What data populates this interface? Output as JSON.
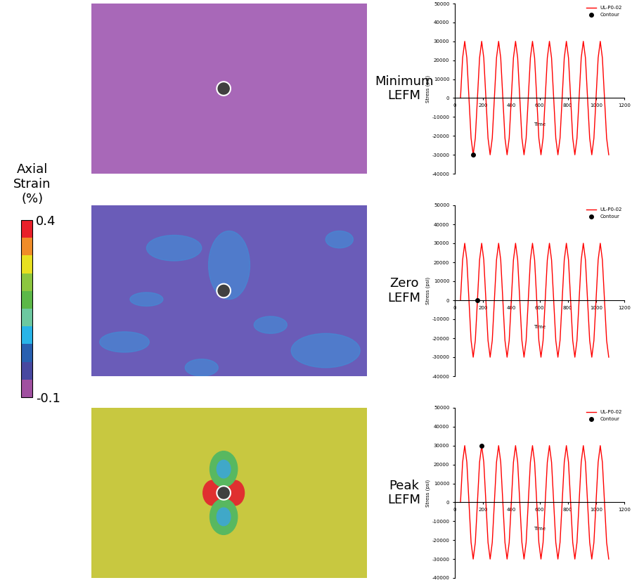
{
  "colorbar": {
    "label": "Axial\nStrain\n(%)",
    "range": [
      -0.1,
      0.4
    ],
    "ticks": [
      0.4,
      -0.1
    ],
    "colors": [
      "#e8202a",
      "#f08c28",
      "#e8e020",
      "#8cc63f",
      "#5cb848",
      "#6cc8a0",
      "#28b4e8",
      "#2860b0",
      "#4848a0",
      "#a050a0"
    ]
  },
  "panels": [
    {
      "label": "Minimum LEFM",
      "color": "#a868b8"
    },
    {
      "label": "Zero LEFM",
      "color": "#6a5cb8"
    },
    {
      "label": "Peak LEFM",
      "color": "#c8c840"
    }
  ],
  "chart_data": [
    {
      "type": "line",
      "x_label": "Time",
      "y_label": "Stress (psi)",
      "legend": "upper right",
      "xlim": [
        0,
        1200
      ],
      "xticks": [
        0,
        200,
        400,
        600,
        800,
        1000,
        1200
      ],
      "ylim": [
        -40000,
        50000
      ],
      "yticks": [
        -40000,
        -30000,
        -20000,
        -10000,
        0,
        10000,
        20000,
        30000,
        40000,
        50000
      ],
      "series": [
        {
          "name": "UL-P0-02",
          "color": "#ff0000",
          "line_style": "solid",
          "x": [
            40,
            55,
            70,
            85,
            100,
            115,
            130,
            145,
            160,
            175,
            190,
            205,
            220,
            235,
            250,
            265,
            280,
            295,
            310,
            325,
            340,
            355,
            370,
            385,
            400,
            415,
            430,
            445,
            460,
            475,
            490,
            505,
            520,
            535,
            550,
            565,
            580,
            595,
            610,
            625,
            640,
            655,
            670,
            685,
            700,
            715,
            730,
            745,
            760,
            775,
            790,
            805,
            820,
            835,
            850,
            865,
            880,
            895,
            910,
            925,
            940,
            955,
            970,
            985,
            1000,
            1015,
            1030,
            1045,
            1060,
            1075,
            1090
          ],
          "values": [
            0,
            21213,
            30000,
            21213,
            0,
            -21213,
            -30000,
            -21213,
            0,
            21213,
            30000,
            21213,
            0,
            -21213,
            -30000,
            -21213,
            0,
            21213,
            30000,
            21213,
            0,
            -21213,
            -30000,
            -21213,
            0,
            21213,
            30000,
            21213,
            0,
            -21213,
            -30000,
            -21213,
            0,
            21213,
            30000,
            21213,
            0,
            -21213,
            -30000,
            -21213,
            0,
            21213,
            30000,
            21213,
            0,
            -21213,
            -30000,
            -21213,
            0,
            21213,
            30000,
            21213,
            0,
            -21213,
            -30000,
            -21213,
            0,
            21213,
            30000,
            21213,
            0,
            -21213,
            -30000,
            -21213,
            0,
            21213,
            30000,
            21213,
            0,
            -21213,
            -30000
          ]
        },
        {
          "name": "Contour",
          "color": "#000000",
          "type": "scatter",
          "marker": "o",
          "x": [
            130
          ],
          "values": [
            -30000
          ]
        }
      ]
    },
    {
      "type": "line",
      "x_label": "Time",
      "y_label": "Stress (psi)",
      "legend": "upper right",
      "xlim": [
        0,
        1200
      ],
      "xticks": [
        0,
        200,
        400,
        600,
        800,
        1000,
        1200
      ],
      "ylim": [
        -40000,
        50000
      ],
      "yticks": [
        -40000,
        -30000,
        -20000,
        -10000,
        0,
        10000,
        20000,
        30000,
        40000,
        50000
      ],
      "series": [
        {
          "name": "UL-P0-02",
          "color": "#ff0000",
          "line_style": "solid",
          "x": [
            40,
            55,
            70,
            85,
            100,
            115,
            130,
            145,
            160,
            175,
            190,
            205,
            220,
            235,
            250,
            265,
            280,
            295,
            310,
            325,
            340,
            355,
            370,
            385,
            400,
            415,
            430,
            445,
            460,
            475,
            490,
            505,
            520,
            535,
            550,
            565,
            580,
            595,
            610,
            625,
            640,
            655,
            670,
            685,
            700,
            715,
            730,
            745,
            760,
            775,
            790,
            805,
            820,
            835,
            850,
            865,
            880,
            895,
            910,
            925,
            940,
            955,
            970,
            985,
            1000,
            1015,
            1030,
            1045,
            1060,
            1075,
            1090
          ],
          "values": [
            0,
            21213,
            30000,
            21213,
            0,
            -21213,
            -30000,
            -21213,
            0,
            21213,
            30000,
            21213,
            0,
            -21213,
            -30000,
            -21213,
            0,
            21213,
            30000,
            21213,
            0,
            -21213,
            -30000,
            -21213,
            0,
            21213,
            30000,
            21213,
            0,
            -21213,
            -30000,
            -21213,
            0,
            21213,
            30000,
            21213,
            0,
            -21213,
            -30000,
            -21213,
            0,
            21213,
            30000,
            21213,
            0,
            -21213,
            -30000,
            -21213,
            0,
            21213,
            30000,
            21213,
            0,
            -21213,
            -30000,
            -21213,
            0,
            21213,
            30000,
            21213,
            0,
            -21213,
            -30000,
            -21213,
            0,
            21213,
            30000,
            21213,
            0,
            -21213,
            -30000
          ]
        },
        {
          "name": "Contour",
          "color": "#000000",
          "type": "scatter",
          "marker": "o",
          "x": [
            160
          ],
          "values": [
            0
          ]
        }
      ]
    },
    {
      "type": "line",
      "x_label": "Time",
      "y_label": "Stress (psi)",
      "legend": "upper right",
      "xlim": [
        0,
        1200
      ],
      "xticks": [
        0,
        200,
        400,
        600,
        800,
        1000,
        1200
      ],
      "ylim": [
        -40000,
        50000
      ],
      "yticks": [
        -40000,
        -30000,
        -20000,
        -10000,
        0,
        10000,
        20000,
        30000,
        40000,
        50000
      ],
      "series": [
        {
          "name": "UL-P0-02",
          "color": "#ff0000",
          "line_style": "solid",
          "x": [
            40,
            55,
            70,
            85,
            100,
            115,
            130,
            145,
            160,
            175,
            190,
            205,
            220,
            235,
            250,
            265,
            280,
            295,
            310,
            325,
            340,
            355,
            370,
            385,
            400,
            415,
            430,
            445,
            460,
            475,
            490,
            505,
            520,
            535,
            550,
            565,
            580,
            595,
            610,
            625,
            640,
            655,
            670,
            685,
            700,
            715,
            730,
            745,
            760,
            775,
            790,
            805,
            820,
            835,
            850,
            865,
            880,
            895,
            910,
            925,
            940,
            955,
            970,
            985,
            1000,
            1015,
            1030,
            1045,
            1060,
            1075,
            1090
          ],
          "values": [
            0,
            21213,
            30000,
            21213,
            0,
            -21213,
            -30000,
            -21213,
            0,
            21213,
            30000,
            21213,
            0,
            -21213,
            -30000,
            -21213,
            0,
            21213,
            30000,
            21213,
            0,
            -21213,
            -30000,
            -21213,
            0,
            21213,
            30000,
            21213,
            0,
            -21213,
            -30000,
            -21213,
            0,
            21213,
            30000,
            21213,
            0,
            -21213,
            -30000,
            -21213,
            0,
            21213,
            30000,
            21213,
            0,
            -21213,
            -30000,
            -21213,
            0,
            21213,
            30000,
            21213,
            0,
            -21213,
            -30000,
            -21213,
            0,
            21213,
            30000,
            21213,
            0,
            -21213,
            -30000,
            -21213,
            0,
            21213,
            30000,
            21213,
            0,
            -21213,
            -30000
          ]
        },
        {
          "name": "Contour",
          "color": "#000000",
          "type": "scatter",
          "marker": "o",
          "x": [
            190
          ],
          "values": [
            30000
          ]
        }
      ]
    }
  ]
}
